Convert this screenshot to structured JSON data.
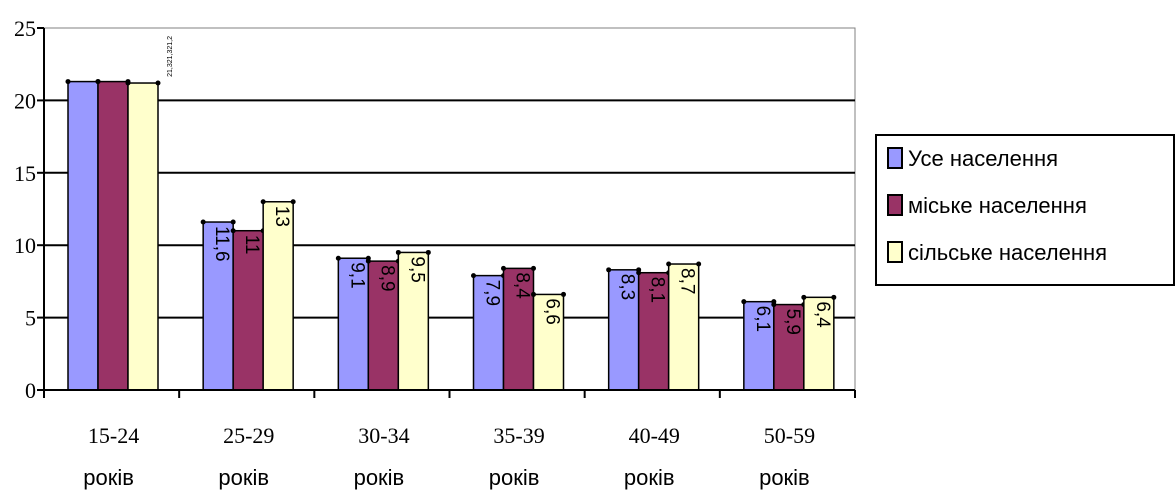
{
  "chart_data": {
    "type": "bar",
    "categories": [
      {
        "line1": "15-24",
        "line2": "років"
      },
      {
        "line1": "25-29",
        "line2": "років"
      },
      {
        "line1": "30-34",
        "line2": "років"
      },
      {
        "line1": "35-39",
        "line2": "років"
      },
      {
        "line1": "40-49",
        "line2": "років"
      },
      {
        "line1": "50-59",
        "line2": "років"
      }
    ],
    "series": [
      {
        "name": "Усе населення",
        "color": "#9999ff",
        "values": [
          21.3,
          11.6,
          9.1,
          7.9,
          8.3,
          6.1
        ],
        "labels": [
          "21,3",
          "11,6",
          "9,1",
          "7,9",
          "8,3",
          "6,1"
        ]
      },
      {
        "name": "міське населення",
        "color": "#993366",
        "values": [
          21.3,
          11,
          8.9,
          8.4,
          8.1,
          5.9
        ],
        "labels": [
          "21,3",
          "11",
          "8,9",
          "8,4",
          "8,1",
          "5,9"
        ]
      },
      {
        "name": "сільське населення",
        "color": "#ffffcc",
        "values": [
          21.2,
          13,
          9.5,
          6.6,
          8.7,
          6.4
        ],
        "labels": [
          "21,2",
          "13",
          "9,5",
          "6,6",
          "8,7",
          "6,4"
        ]
      }
    ],
    "first_group_label": "21,321,321,2",
    "ylim": [
      0,
      25
    ],
    "yticks": [
      0,
      5,
      10,
      15,
      20,
      25
    ],
    "grid": true,
    "legend_position": "right",
    "plot_background": "#ffffff"
  }
}
